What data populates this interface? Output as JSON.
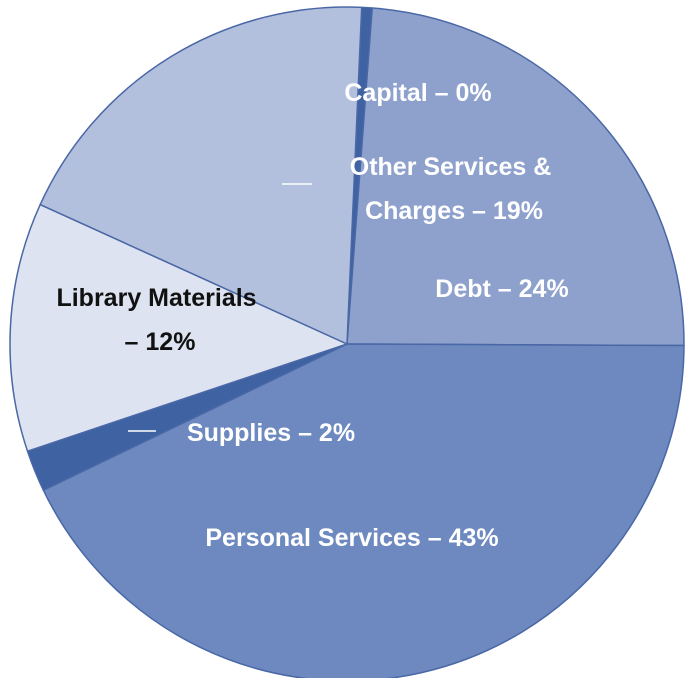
{
  "chart_data": {
    "type": "pie",
    "title": "",
    "slices": [
      {
        "label": "Capital",
        "display": "Capital – 0%",
        "value": 0.5,
        "color": "#3f62a3",
        "text_color": "#ffffff"
      },
      {
        "label": "Debt",
        "display": "Debt – 24%",
        "value": 24,
        "color": "#8da1cc",
        "text_color": "#ffffff"
      },
      {
        "label": "Personal Services",
        "display": "Personal Services – 43%",
        "value": 43,
        "color": "#6d89bf",
        "text_color": "#ffffff"
      },
      {
        "label": "Supplies",
        "display": "Supplies – 2%",
        "value": 2,
        "color": "#3f62a3",
        "text_color": "#ffffff"
      },
      {
        "label": "Library Materials",
        "display": "Library Materials – 12%",
        "value": 12,
        "color": "#dde3f0",
        "text_color": "#111111"
      },
      {
        "label": "Other Services & Charges",
        "display": "Other Services & Charges – 19%",
        "value": 19,
        "color": "#b3c0dd",
        "text_color": "#ffffff"
      }
    ]
  }
}
